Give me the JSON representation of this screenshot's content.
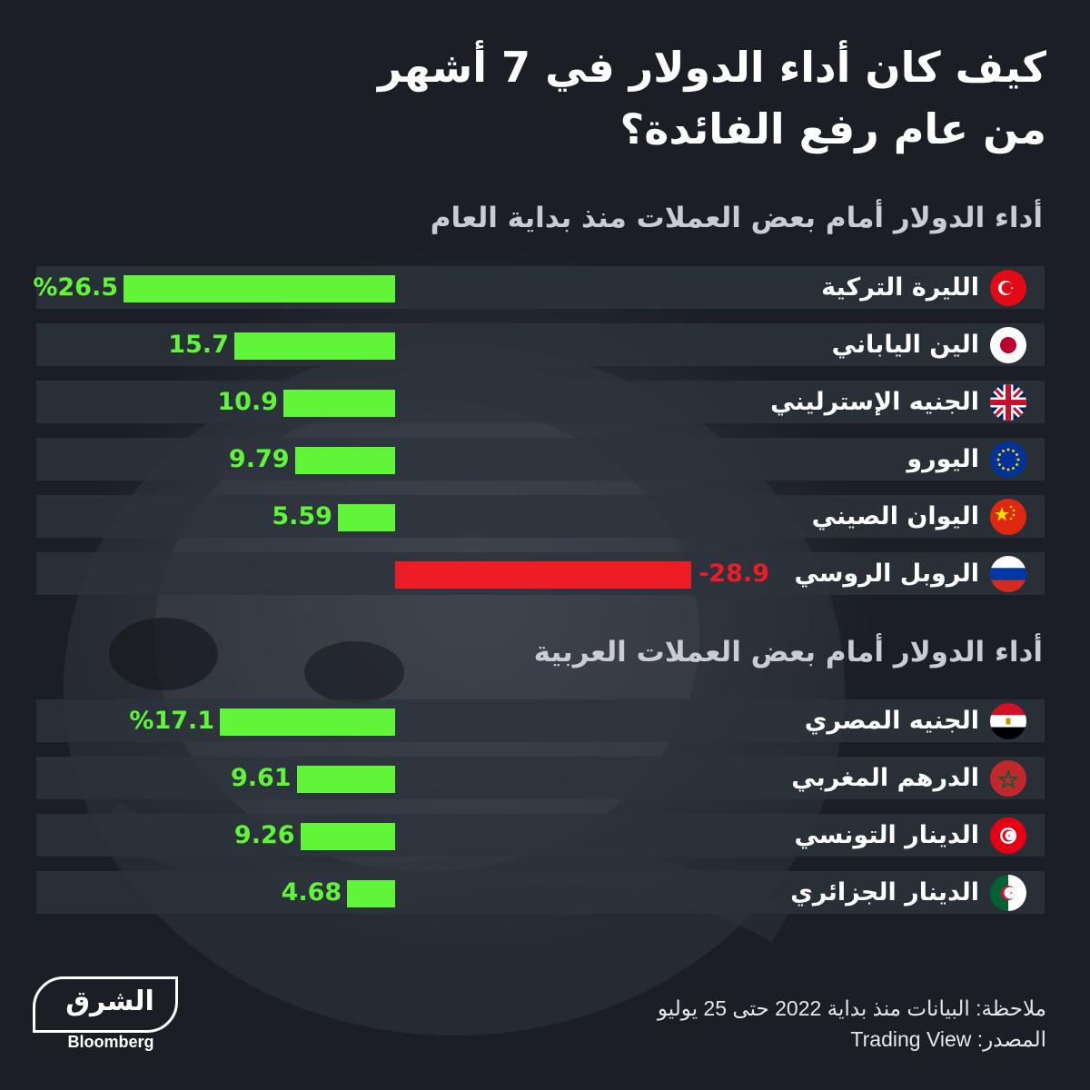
{
  "title": {
    "line1": "كيف كان أداء الدولار في 7 أشهر",
    "line2": "من عام رفع الفائدة؟"
  },
  "chart_data": [
    {
      "type": "bar",
      "title": "أداء الدولار أمام بعض العملات منذ بداية العام",
      "categories": [
        "الليرة التركية",
        "الين الياباني",
        "الجنيه الإسترليني",
        "اليورو",
        "اليوان الصيني",
        "الروبل الروسي"
      ],
      "flags": [
        "turkey-flag-icon",
        "japan-flag-icon",
        "uk-flag-icon",
        "eu-flag-icon",
        "china-flag-icon",
        "russia-flag-icon"
      ],
      "values": [
        26.5,
        15.7,
        10.9,
        9.79,
        5.59,
        -28.9
      ],
      "labels": [
        "%26.5",
        "15.7",
        "10.9",
        "9.79",
        "5.59",
        "-28.9"
      ],
      "unit": "%",
      "orientation": "horizontal",
      "xlim": [
        -30,
        30
      ]
    },
    {
      "type": "bar",
      "title": "أداء الدولار أمام بعض العملات العربية",
      "categories": [
        "الجنيه المصري",
        "الدرهم المغربي",
        "الدينار التونسي",
        "الدينار الجزائري"
      ],
      "flags": [
        "egypt-flag-icon",
        "morocco-flag-icon",
        "tunisia-flag-icon",
        "algeria-flag-icon"
      ],
      "values": [
        17.1,
        9.61,
        9.26,
        4.68
      ],
      "labels": [
        "%17.1",
        "9.61",
        "9.26",
        "4.68"
      ],
      "unit": "%",
      "orientation": "horizontal",
      "xlim": [
        -30,
        30
      ]
    }
  ],
  "colors": {
    "positive": "#61f53a",
    "negative": "#ee1c25",
    "background": "#1b1f25"
  },
  "footer": {
    "note": "ملاحظة: البيانات منذ بداية 2022 حتى 25 يوليو",
    "source": "المصدر: Trading View"
  },
  "logo": {
    "arabic": "الشرق",
    "english": "Bloomberg"
  }
}
